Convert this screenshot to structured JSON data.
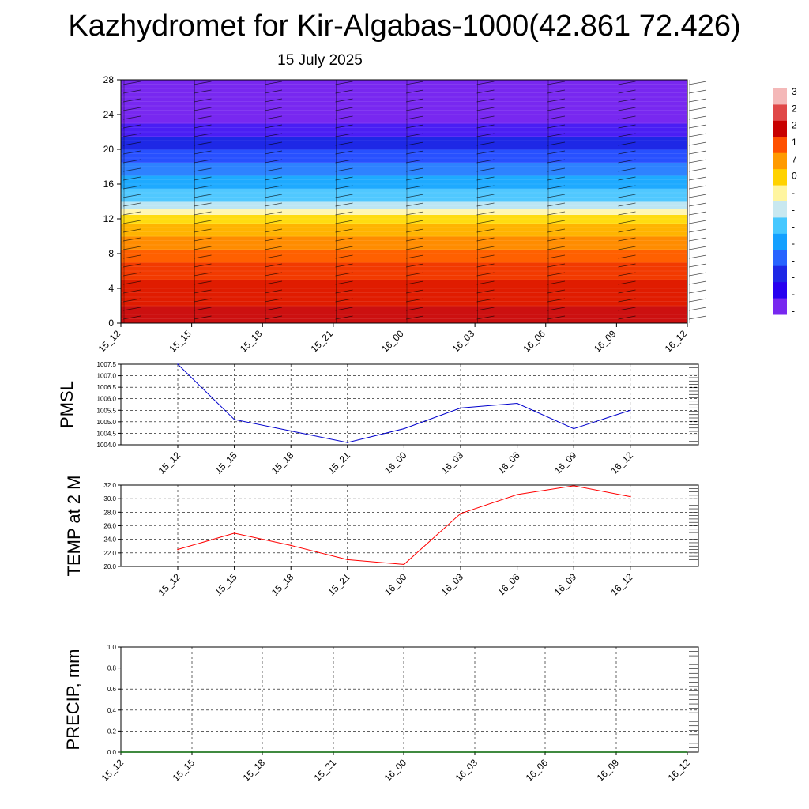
{
  "header": {
    "title": "Kazhydromet for Kir-Algabas-1000(42.861 72.426)",
    "subtitle": "15 July 2025"
  },
  "colorbar": {
    "labels": [
      "3",
      "2",
      "2",
      "1",
      "7",
      "0",
      "-",
      "-",
      "-",
      "-",
      "-",
      "-",
      "-",
      "-"
    ],
    "colors": [
      "#f4b8b8",
      "#e04848",
      "#c80000",
      "#ff5000",
      "#ff9a00",
      "#ffd200",
      "#fff5a0",
      "#c8e8f0",
      "#46c8ff",
      "#14a0ff",
      "#2864ff",
      "#1e28e6",
      "#2800f0",
      "#7828f0"
    ]
  },
  "chart_data": [
    {
      "type": "heatmap",
      "x_ticks": [
        "15_12",
        "15_15",
        "15_18",
        "15_21",
        "16_00",
        "16_03",
        "16_06",
        "16_09",
        "16_12"
      ],
      "y_ticks": [
        0,
        4,
        8,
        12,
        16,
        20,
        24,
        28
      ],
      "ylim": [
        0,
        28
      ],
      "bands": [
        {
          "from": 0,
          "to": 2,
          "color": "#cc1010"
        },
        {
          "from": 2,
          "to": 5,
          "color": "#e01c00"
        },
        {
          "from": 5,
          "to": 7,
          "color": "#f23a00"
        },
        {
          "from": 7,
          "to": 8.5,
          "color": "#ff6000"
        },
        {
          "from": 8.5,
          "to": 10,
          "color": "#ff8c00"
        },
        {
          "from": 10,
          "to": 11.5,
          "color": "#ffb400"
        },
        {
          "from": 11.5,
          "to": 12.5,
          "color": "#ffdc10"
        },
        {
          "from": 12.5,
          "to": 13.2,
          "color": "#fff7b4"
        },
        {
          "from": 13.2,
          "to": 14,
          "color": "#bce6f4"
        },
        {
          "from": 14,
          "to": 15.5,
          "color": "#50c8ff"
        },
        {
          "from": 15.5,
          "to": 17,
          "color": "#1eaaff"
        },
        {
          "from": 17,
          "to": 18.5,
          "color": "#2e82ff"
        },
        {
          "from": 18.5,
          "to": 20,
          "color": "#2850ff"
        },
        {
          "from": 20,
          "to": 21.5,
          "color": "#1e28e6"
        },
        {
          "from": 21.5,
          "to": 23,
          "color": "#4a1ef4"
        },
        {
          "from": 23,
          "to": 28,
          "color": "#7828f0"
        }
      ]
    },
    {
      "type": "line",
      "ylabel": "PMSL",
      "x": [
        "15_12",
        "15_15",
        "15_18",
        "15_21",
        "16_00",
        "16_03",
        "16_06",
        "16_09",
        "16_12"
      ],
      "values": [
        1007.5,
        1005.1,
        1004.6,
        1004.1,
        1004.7,
        1005.6,
        1005.8,
        1004.7,
        1005.5
      ],
      "ylim": [
        1004.0,
        1007.5
      ],
      "y_ticks": [
        "1007.5",
        "1007.0",
        "1006.5",
        "1006.0",
        "1005.5",
        "1005.0",
        "1004.5",
        "1004.0"
      ],
      "grid": true,
      "color": "#0000cc"
    },
    {
      "type": "line",
      "ylabel": "TEMP at 2 M",
      "x": [
        "15_12",
        "15_15",
        "15_18",
        "15_21",
        "16_00",
        "16_03",
        "16_06",
        "16_09",
        "16_12"
      ],
      "values": [
        22.5,
        24.9,
        23.1,
        21.0,
        20.3,
        27.8,
        30.6,
        31.9,
        30.3
      ],
      "ylim": [
        20.0,
        32.0
      ],
      "y_ticks": [
        "32.0",
        "30.0",
        "28.0",
        "26.0",
        "24.0",
        "22.0",
        "20.0"
      ],
      "grid": true,
      "color": "#ff0000"
    },
    {
      "type": "line",
      "ylabel": "PRECIP, mm",
      "x": [
        "15_12",
        "15_15",
        "15_18",
        "15_21",
        "16_00",
        "16_03",
        "16_06",
        "16_09",
        "16_12"
      ],
      "values": [
        0,
        0,
        0,
        0,
        0,
        0,
        0,
        0,
        0
      ],
      "ylim": [
        0.0,
        1.0
      ],
      "y_ticks": [
        "1.0",
        "0.8",
        "0.6",
        "0.4",
        "0.2",
        "0.0"
      ],
      "grid": true,
      "color": "#006400"
    }
  ]
}
